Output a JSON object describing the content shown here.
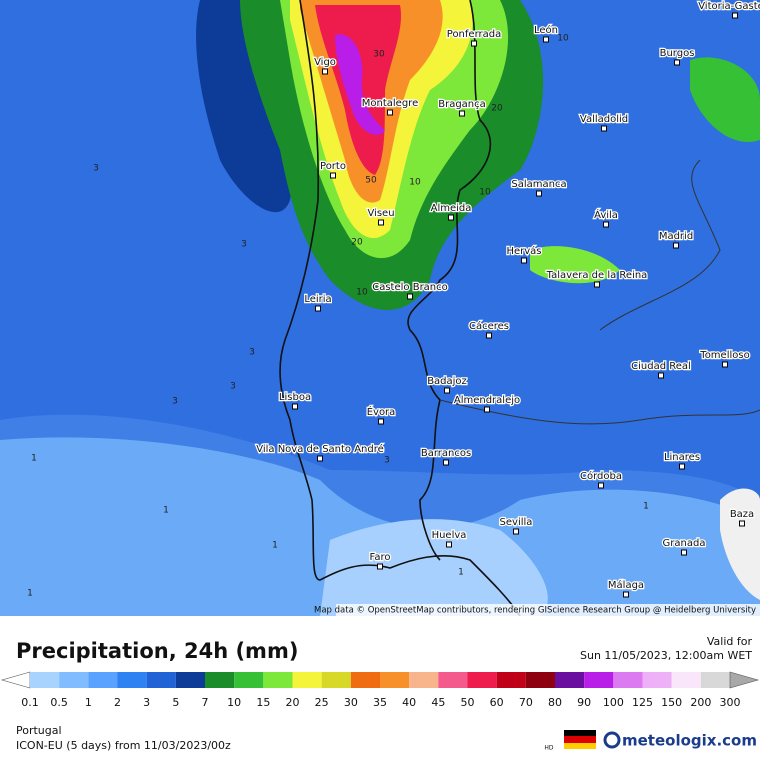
{
  "map": {
    "cities": [
      "Vitoria-Gasteiz",
      "León",
      "Ponferrada",
      "Vigo",
      "Burgos",
      "Montalegre",
      "Bragança",
      "Valladolid",
      "Porto",
      "Salamanca",
      "Almeida",
      "Viseu",
      "Ávila",
      "Madrid",
      "Hervás",
      "Talavera de la Reina",
      "Castelo Branco",
      "Leiria",
      "Cáceres",
      "Tomelloso",
      "Ciudad Real",
      "Badajoz",
      "Lisboa",
      "Almendralejo",
      "Évora",
      "Vila Nova de Santo André",
      "Barrancos",
      "Linares",
      "Córdoba",
      "Baza",
      "Sevilla",
      "Huelva",
      "Granada",
      "Faro",
      "Málaga"
    ],
    "contour_labels": [
      "30",
      "10",
      "20",
      "50",
      "10",
      "10",
      "20",
      "10",
      "3",
      "3",
      "3",
      "3",
      "3",
      "3",
      "1",
      "1",
      "1",
      "1",
      "1",
      "1"
    ],
    "attribution": "Map data © OpenStreetMap contributors, rendering GIScience Research Group @ Heidelberg University"
  },
  "legend": {
    "title": "Precipitation, 24h (mm)",
    "valid_label": "Valid for",
    "valid_time": "Sun 11/05/2023, 12:00am WET",
    "ticks": [
      "0.1",
      "0.5",
      "1",
      "2",
      "3",
      "5",
      "7",
      "10",
      "15",
      "20",
      "25",
      "30",
      "35",
      "40",
      "45",
      "50",
      "60",
      "70",
      "80",
      "90",
      "100",
      "125",
      "150",
      "200",
      "300"
    ],
    "colors": [
      "#ffffff",
      "#a9d3ff",
      "#80bcff",
      "#5aa2ff",
      "#2f82f2",
      "#1f63d6",
      "#0d3b98",
      "#1a8c2a",
      "#35c036",
      "#7de83a",
      "#f4f43a",
      "#d8d828",
      "#f06c10",
      "#f8902a",
      "#f8b48a",
      "#f45a8c",
      "#ee1c4c",
      "#c00018",
      "#8e0010",
      "#6a0ea0",
      "#b81ee8",
      "#dc7af2",
      "#eeb0f6",
      "#fae6fa",
      "#d8d8d8",
      "#a8a8a8"
    ],
    "region": "Portugal",
    "model": "ICON-EU (5 days) from 11/03/2023/00z",
    "brand": "meteologix.com",
    "hd": "HD"
  }
}
